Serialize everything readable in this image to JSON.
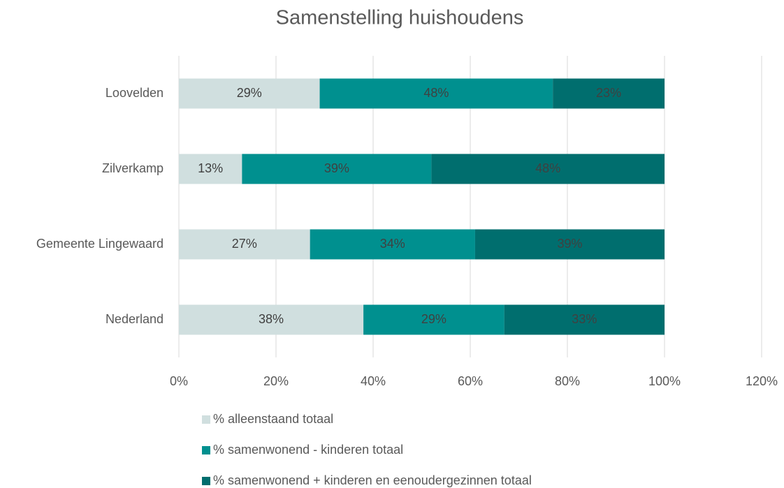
{
  "chart_data": {
    "type": "bar",
    "orientation": "horizontal",
    "stacked": true,
    "title": "Samenstelling huishoudens",
    "categories": [
      "Loovelden",
      "Zilverkamp",
      "Gemeente Lingewaard",
      "Nederland"
    ],
    "series": [
      {
        "name": "% alleenstaand totaal",
        "color": "#d0dfdf",
        "values": [
          29,
          13,
          27,
          38
        ],
        "value_labels": [
          "29%",
          "13%",
          "27%",
          "38%"
        ]
      },
      {
        "name": "% samenwonend - kinderen totaal",
        "color": "#00908f",
        "values": [
          48,
          39,
          34,
          29
        ],
        "value_labels": [
          "48%",
          "39%",
          "34%",
          "29%"
        ]
      },
      {
        "name": "% samenwonend + kinderen en eenoudergezinnen totaal",
        "color": "#006e6e",
        "values": [
          23,
          48,
          39,
          33
        ],
        "value_labels": [
          "23%",
          "48%",
          "39%",
          "33%"
        ]
      }
    ],
    "xlim": [
      0,
      120
    ],
    "xticks": [
      {
        "value": 0,
        "label": "0%"
      },
      {
        "value": 20,
        "label": "20%"
      },
      {
        "value": 40,
        "label": "40%"
      },
      {
        "value": 60,
        "label": "60%"
      },
      {
        "value": 80,
        "label": "80%"
      },
      {
        "value": 100,
        "label": "100%"
      },
      {
        "value": 120,
        "label": "120%"
      }
    ],
    "grid": true,
    "legend": "bottom"
  }
}
